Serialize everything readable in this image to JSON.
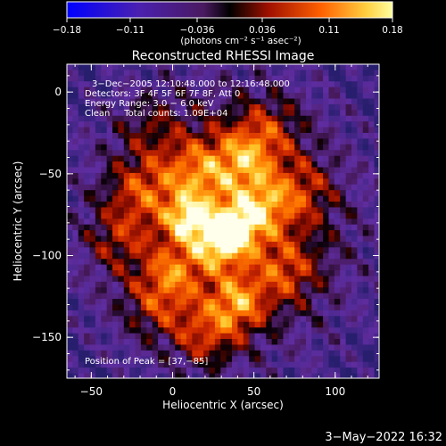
{
  "colorbar": {
    "tick_labels": [
      "−0.18",
      "−0.11",
      "−0.036",
      "0.036",
      "0.11",
      "0.18"
    ],
    "tick_values": [
      -0.18,
      -0.11,
      -0.036,
      0.036,
      0.11,
      0.18
    ],
    "range": [
      -0.18,
      0.18
    ],
    "units_text": "(photons cm⁻² s⁻¹ asec⁻²)"
  },
  "chart_data": {
    "type": "heatmap",
    "title": "Reconstructed RHESSI Image",
    "xlabel": "Heliocentric X (arcsec)",
    "ylabel": "Heliocentric Y (arcsec)",
    "xlim": [
      -65,
      127
    ],
    "ylim": [
      -175,
      17
    ],
    "x_ticks": [
      -50,
      0,
      50,
      100
    ],
    "x_tick_labels": [
      "−50",
      "0",
      "50",
      "100"
    ],
    "y_ticks": [
      0,
      -50,
      -100,
      -150
    ],
    "y_tick_labels": [
      "0",
      "−50",
      "−100",
      "−150"
    ],
    "info_lines": [
      "3−Dec−2005 12:10:48.000 to 12:16:48.000",
      "Detectors: 3F 4F 5F 6F 7F 8F, Att 0",
      "Energy Range: 3.0 − 6.0 keV",
      "Clean     Total counts: 1.09E+04"
    ],
    "peak_label": "Position of Peak = [37,−85]",
    "peak": [
      37,
      -85
    ],
    "colormap": [
      "#0000ff",
      "#5a1a8c",
      "#000000",
      "#cc1a00",
      "#ff8000",
      "#ffff66",
      "#ffffff"
    ]
  },
  "timestamp": "3−May−2022 16:32"
}
